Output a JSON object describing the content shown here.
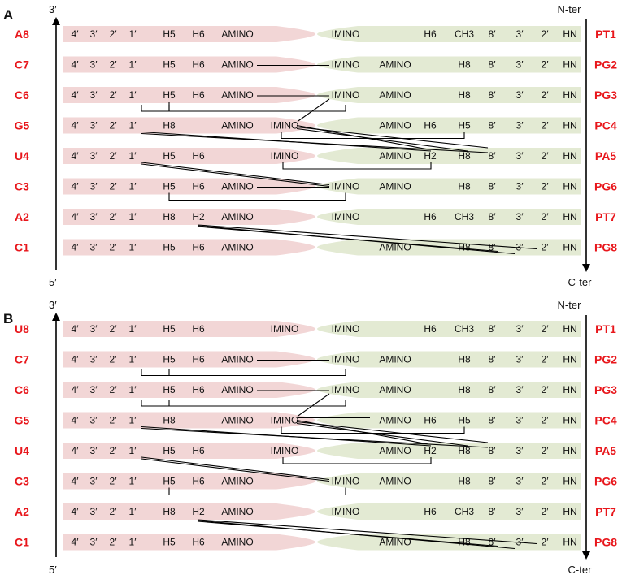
{
  "panels": [
    {
      "label": "A",
      "left_top": "3′",
      "left_bottom": "5′",
      "right_top": "N-ter",
      "right_bottom": "C-ter",
      "rows": [
        {
          "rna": "A8",
          "pna": "PT1",
          "rna_atoms": [
            "4′",
            "3′",
            "2′",
            "1′",
            "H5",
            "H6",
            "AMINO"
          ],
          "pna_atoms": [
            "IMINO",
            "H6",
            "CH3",
            "8′",
            "3′",
            "2′",
            "HN"
          ]
        },
        {
          "rna": "C7",
          "pna": "PG2",
          "rna_atoms": [
            "4′",
            "3′",
            "2′",
            "1′",
            "H5",
            "H6",
            "AMINO"
          ],
          "pna_atoms": [
            "IMINO",
            "AMINO",
            "H8",
            "8′",
            "3′",
            "2′",
            "HN"
          ]
        },
        {
          "rna": "C6",
          "pna": "PG3",
          "rna_atoms": [
            "4′",
            "3′",
            "2′",
            "1′",
            "H5",
            "H6",
            "AMINO"
          ],
          "pna_atoms": [
            "IMINO",
            "AMINO",
            "H8",
            "8′",
            "3′",
            "2′",
            "HN"
          ]
        },
        {
          "rna": "G5",
          "pna": "PC4",
          "rna_atoms": [
            "4′",
            "3′",
            "2′",
            "1′",
            "H8",
            "",
            "AMINO",
            "IMINO"
          ],
          "pna_atoms": [
            "AMINO",
            "H6",
            "H5",
            "8′",
            "3′",
            "2′",
            "HN"
          ]
        },
        {
          "rna": "U4",
          "pna": "PA5",
          "rna_atoms": [
            "4′",
            "3′",
            "2′",
            "1′",
            "H5",
            "H6",
            "",
            "IMINO"
          ],
          "pna_atoms": [
            "AMINO",
            "H2",
            "H8",
            "8′",
            "3′",
            "2′",
            "HN"
          ]
        },
        {
          "rna": "C3",
          "pna": "PG6",
          "rna_atoms": [
            "4′",
            "3′",
            "2′",
            "1′",
            "H5",
            "H6",
            "AMINO"
          ],
          "pna_atoms": [
            "IMINO",
            "AMINO",
            "H8",
            "8′",
            "3′",
            "2′",
            "HN"
          ]
        },
        {
          "rna": "A2",
          "pna": "PT7",
          "rna_atoms": [
            "4′",
            "3′",
            "2′",
            "1′",
            "H8",
            "H2",
            "AMINO"
          ],
          "pna_atoms": [
            "IMINO",
            "H6",
            "CH3",
            "8′",
            "3′",
            "2′",
            "HN"
          ]
        },
        {
          "rna": "C1",
          "pna": "PG8",
          "rna_atoms": [
            "4′",
            "3′",
            "2′",
            "1′",
            "H5",
            "H6",
            "AMINO"
          ],
          "pna_atoms": [
            "AMINO",
            "H8",
            "8′",
            "3′",
            "2′",
            "HN"
          ]
        }
      ]
    },
    {
      "label": "B",
      "left_top": "3′",
      "left_bottom": "5′",
      "right_top": "N-ter",
      "right_bottom": "C-ter",
      "rows": [
        {
          "rna": "U8",
          "pna": "PT1",
          "rna_atoms": [
            "4′",
            "3′",
            "2′",
            "1′",
            "H5",
            "H6",
            "",
            "IMINO"
          ],
          "pna_atoms": [
            "IMINO",
            "H6",
            "CH3",
            "8′",
            "3′",
            "2′",
            "HN"
          ]
        },
        {
          "rna": "C7",
          "pna": "PG2",
          "rna_atoms": [
            "4′",
            "3′",
            "2′",
            "1′",
            "H5",
            "H6",
            "AMINO"
          ],
          "pna_atoms": [
            "IMINO",
            "AMINO",
            "H8",
            "8′",
            "3′",
            "2′",
            "HN"
          ]
        },
        {
          "rna": "C6",
          "pna": "PG3",
          "rna_atoms": [
            "4′",
            "3′",
            "2′",
            "1′",
            "H5",
            "H6",
            "AMINO"
          ],
          "pna_atoms": [
            "IMINO",
            "AMINO",
            "H8",
            "8′",
            "3′",
            "2′",
            "HN"
          ]
        },
        {
          "rna": "G5",
          "pna": "PC4",
          "rna_atoms": [
            "4′",
            "3′",
            "2′",
            "1′",
            "H8",
            "",
            "AMINO",
            "IMINO"
          ],
          "pna_atoms": [
            "AMINO",
            "H6",
            "H5",
            "8′",
            "3′",
            "2′",
            "HN"
          ]
        },
        {
          "rna": "U4",
          "pna": "PA5",
          "rna_atoms": [
            "4′",
            "3′",
            "2′",
            "1′",
            "H5",
            "H6",
            "",
            "IMINO"
          ],
          "pna_atoms": [
            "AMINO",
            "H2",
            "H8",
            "8′",
            "3′",
            "2′",
            "HN"
          ]
        },
        {
          "rna": "C3",
          "pna": "PG6",
          "rna_atoms": [
            "4′",
            "3′",
            "2′",
            "1′",
            "H5",
            "H6",
            "AMINO"
          ],
          "pna_atoms": [
            "IMINO",
            "AMINO",
            "H8",
            "8′",
            "3′",
            "2′",
            "HN"
          ]
        },
        {
          "rna": "A2",
          "pna": "PT7",
          "rna_atoms": [
            "4′",
            "3′",
            "2′",
            "1′",
            "H8",
            "H2",
            "AMINO"
          ],
          "pna_atoms": [
            "IMINO",
            "H6",
            "CH3",
            "8′",
            "3′",
            "2′",
            "HN"
          ]
        },
        {
          "rna": "C1",
          "pna": "PG8",
          "rna_atoms": [
            "4′",
            "3′",
            "2′",
            "1′",
            "H5",
            "H6",
            "AMINO"
          ],
          "pna_atoms": [
            "AMINO",
            "H8",
            "8′",
            "3′",
            "2′",
            "HN"
          ]
        }
      ]
    }
  ],
  "colors": {
    "rna_strand": "#f2d6d6",
    "pna_strand": "#e3ead3",
    "residue_label": "#e8161b",
    "lines": "#000000"
  }
}
